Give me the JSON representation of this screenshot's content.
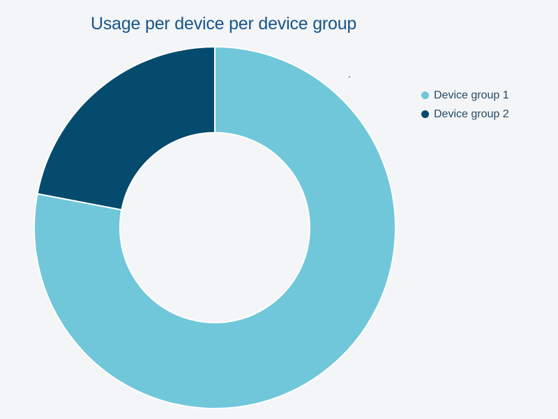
{
  "page": {
    "background_color": "#f3f5f7"
  },
  "chart": {
    "title": "Usage per device per device group",
    "title_color": "#17548a",
    "artifact_dot": ".",
    "legend": {
      "position": "right",
      "items": [
        {
          "label": "Device group 1",
          "color": "#70c7da"
        },
        {
          "label": "Device group 2",
          "color": "#054b6d"
        }
      ]
    }
  },
  "chart_data": {
    "type": "pie",
    "subtype": "donut",
    "title": "Usage per device per device group",
    "categories": [
      "Device group 1",
      "Device group 2"
    ],
    "values": [
      78,
      22
    ],
    "unit": "percent (estimated from arc angles)",
    "colors": [
      "#70c7da",
      "#054b6d"
    ],
    "start_angle_deg": 0,
    "direction": "clockwise",
    "inner_radius_ratio": 0.52,
    "slice_border_color": "#ffffff",
    "data_labels": "off",
    "legend_position": "right",
    "grid": "off"
  }
}
